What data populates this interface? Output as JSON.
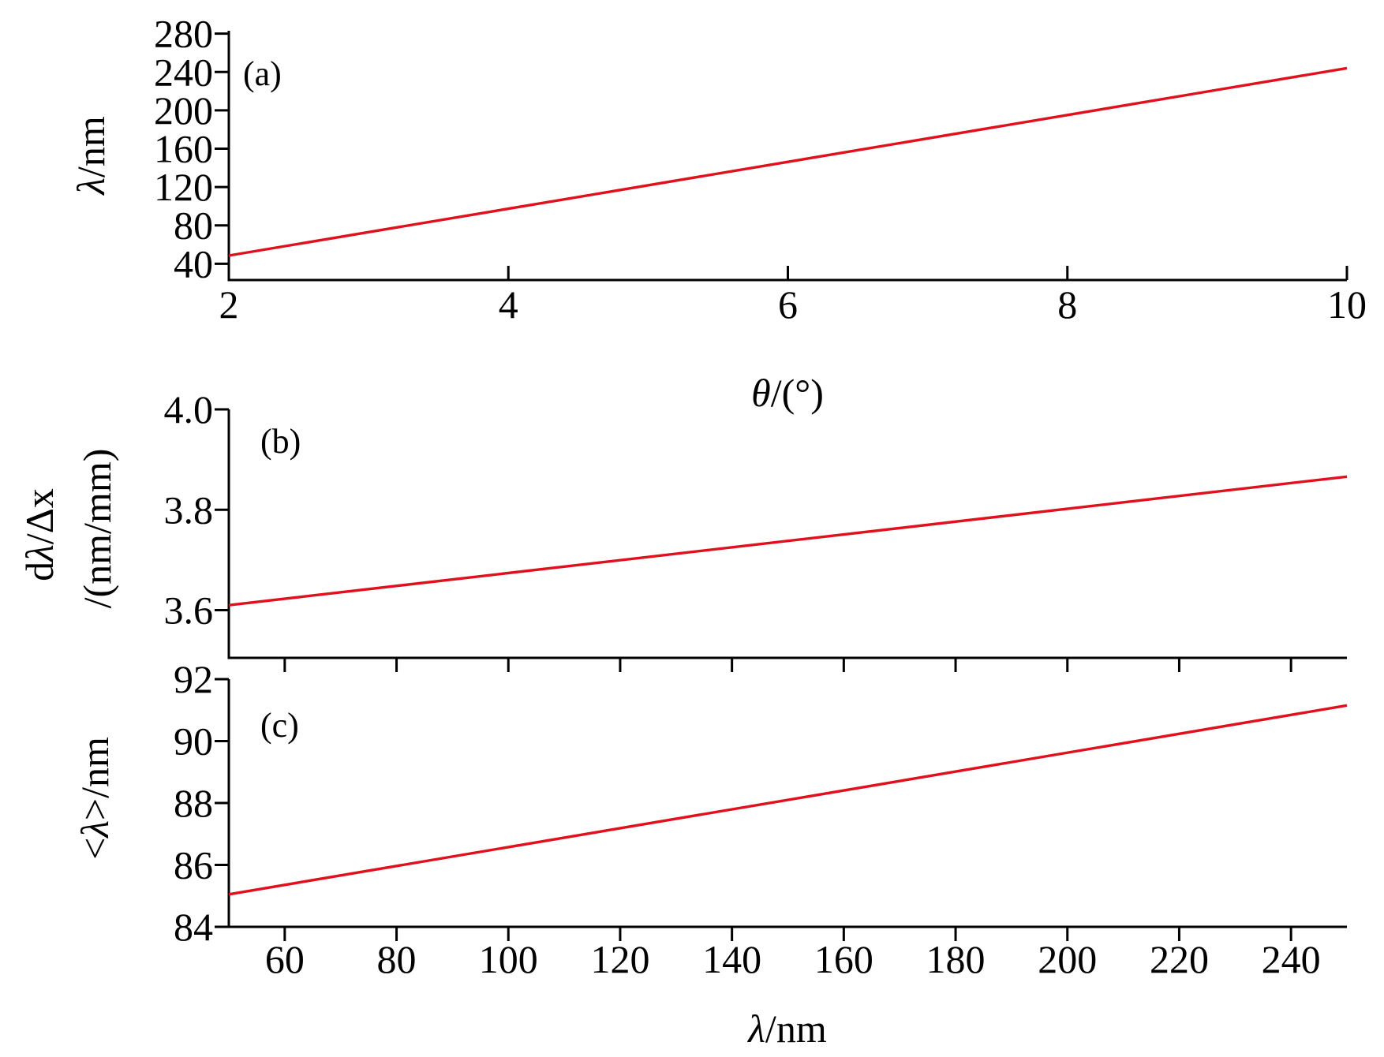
{
  "chart_data": [
    {
      "type": "line",
      "panel_label": "(a)",
      "x": [
        2,
        10
      ],
      "xlim": [
        2,
        10
      ],
      "xticks": [
        2,
        4,
        6,
        8,
        10
      ],
      "xlabel": {
        "symbol": "θ",
        "rest": "/(°)"
      },
      "ylim": [
        23,
        283
      ],
      "yticks": [
        40,
        80,
        120,
        160,
        200,
        240,
        280
      ],
      "ylabel": {
        "symbol": "λ",
        "rest": "/nm"
      },
      "grid": false,
      "series": [
        {
          "color": "#e0101c",
          "values": [
            48.5,
            244
          ]
        }
      ]
    },
    {
      "type": "line",
      "panel_label": "(b)",
      "x": [
        50,
        250
      ],
      "xlim": [
        50,
        250
      ],
      "xticks": [
        60,
        80,
        100,
        120,
        140,
        160,
        180,
        200,
        220,
        240
      ],
      "ylim": [
        3.505,
        4.0
      ],
      "yticks": [
        3.6,
        3.8,
        4.0
      ],
      "ylabel": {
        "line1_prefix": "d",
        "line1_symbol": "λ",
        "line1_rest": "/Δx",
        "line2": "/(nm/mm)"
      },
      "grid": false,
      "series": [
        {
          "color": "#e0101c",
          "values": [
            3.61,
            3.866
          ]
        }
      ]
    },
    {
      "type": "line",
      "panel_label": "(c)",
      "x": [
        50,
        250
      ],
      "xlim": [
        50,
        250
      ],
      "xticks": [
        60,
        80,
        100,
        120,
        140,
        160,
        180,
        200,
        220,
        240
      ],
      "xlabel": {
        "symbol": "λ",
        "rest": "/nm"
      },
      "ylim": [
        84,
        92
      ],
      "yticks": [
        84,
        86,
        88,
        90,
        92
      ],
      "ylabel": {
        "prefix": "<",
        "symbol": "λ",
        "rest": ">/nm"
      },
      "grid": false,
      "series": [
        {
          "color": "#e0101c",
          "values": [
            85.05,
            91.15
          ]
        }
      ]
    }
  ]
}
